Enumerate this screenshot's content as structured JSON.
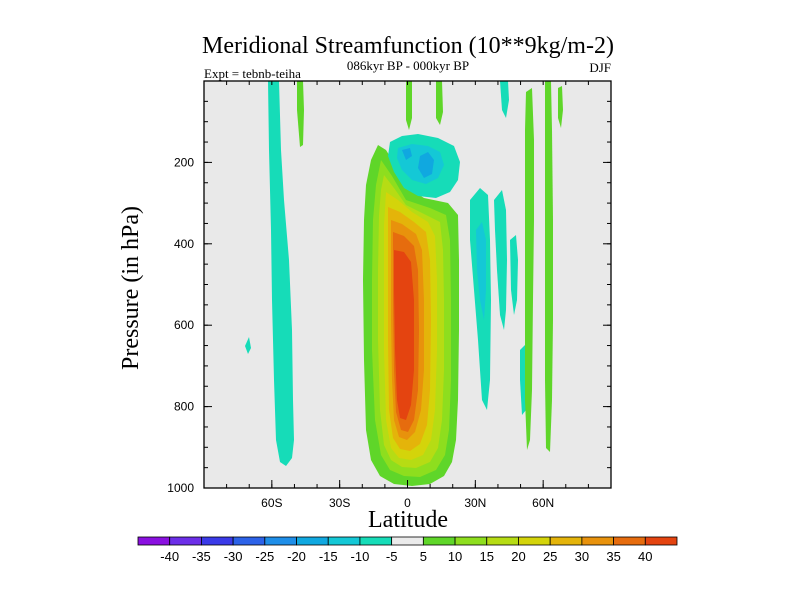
{
  "chart_data": {
    "type": "heatmap",
    "title": "Meridional Streamfunction (10**9kg/m-2)",
    "subtitle": "086kyr BP - 000kyr BP",
    "left_annotation": "Expt = tebnb-teiha",
    "right_annotation": "DJF",
    "xlabel": "Latitude",
    "ylabel": "Pressure (in hPa)",
    "xlim": [
      -90,
      90
    ],
    "ylim": [
      1000,
      0
    ],
    "xticks": [
      {
        "value": -60,
        "label": "60S"
      },
      {
        "value": -30,
        "label": "30S"
      },
      {
        "value": 0,
        "label": "0"
      },
      {
        "value": 30,
        "label": "30N"
      },
      {
        "value": 60,
        "label": "60N"
      }
    ],
    "yticks": [
      {
        "value": 200,
        "label": "200"
      },
      {
        "value": 400,
        "label": "400"
      },
      {
        "value": 600,
        "label": "600"
      },
      {
        "value": 800,
        "label": "800"
      },
      {
        "value": 1000,
        "label": "1000"
      }
    ],
    "contour_levels": [
      -40,
      -35,
      -30,
      -25,
      -20,
      -15,
      -10,
      -5,
      5,
      10,
      15,
      20,
      25,
      30,
      35,
      40
    ],
    "colorbar": {
      "labels": [
        "-40",
        "-35",
        "-30",
        "-25",
        "-20",
        "-15",
        "-10",
        "-5",
        "5",
        "10",
        "15",
        "20",
        "25",
        "30",
        "35",
        "40"
      ],
      "colors": [
        "#8a10e0",
        "#6c2ee8",
        "#3a3ae8",
        "#2c62e8",
        "#1e8ee8",
        "#10a8e0",
        "#14c8d6",
        "#16dcb8",
        "#ebebeb",
        "#5fd629",
        "#8ede1e",
        "#b6dc14",
        "#d4d40a",
        "#e4b40a",
        "#e8920c",
        "#e66c0e",
        "#e44410"
      ]
    },
    "features": [
      {
        "name": "tropical-positive-cell",
        "lat_center": 0,
        "pressure_top": 140,
        "pressure_bottom": 990,
        "peak_value": 40
      },
      {
        "name": "upper-negative-cell",
        "lat_center": 5,
        "pressure_top": 130,
        "pressure_bottom": 280,
        "peak_value": -10
      },
      {
        "name": "southern-negative-band",
        "lat_center": -58,
        "pressure_top": 0,
        "pressure_bottom": 940,
        "peak_value": -5
      },
      {
        "name": "northern-negative-bands",
        "lat_center": 35,
        "pressure_top": 240,
        "pressure_bottom": 740,
        "peak_value": -10
      },
      {
        "name": "northern-positive-streaks",
        "lat_center": 55,
        "pressure_top": 0,
        "pressure_bottom": 890,
        "peak_value": 5
      }
    ],
    "colors": {
      "background": "#e9e9e9",
      "frame": "#000000"
    }
  }
}
